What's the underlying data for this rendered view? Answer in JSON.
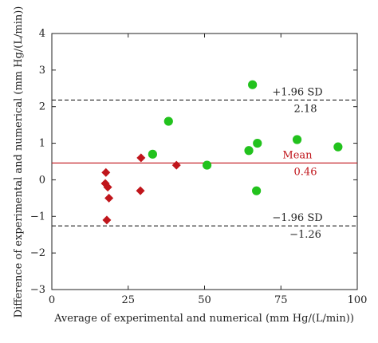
{
  "chart_data": {
    "type": "scatter",
    "title": "",
    "xlabel": "Average of experimental and numerical (mm Hg/(L/min))",
    "ylabel": "Difference of experimental and numerical (mm Hg/(L/min))",
    "xlim": [
      0,
      100
    ],
    "ylim": [
      -3,
      4
    ],
    "x_ticks": [
      "0",
      "25",
      "50",
      "75",
      "100"
    ],
    "y_ticks": [
      "−3",
      "−2",
      "−1",
      "0",
      "1",
      "2",
      "3",
      "4"
    ],
    "grid": false,
    "series": [
      {
        "marker": "diamond",
        "color": "#c0151b",
        "points": [
          {
            "x": 17.7,
            "y": 0.2
          },
          {
            "x": 17.5,
            "y": -0.1
          },
          {
            "x": 18.3,
            "y": -0.2
          },
          {
            "x": 18.7,
            "y": -0.5
          },
          {
            "x": 18.0,
            "y": -1.1
          },
          {
            "x": 29.2,
            "y": 0.6
          },
          {
            "x": 29.0,
            "y": -0.3
          },
          {
            "x": 40.8,
            "y": 0.4
          }
        ]
      },
      {
        "marker": "circle",
        "color": "#22c21d",
        "points": [
          {
            "x": 33.0,
            "y": 0.7
          },
          {
            "x": 38.2,
            "y": 1.6
          },
          {
            "x": 50.8,
            "y": 0.4
          },
          {
            "x": 64.5,
            "y": 0.8
          },
          {
            "x": 65.7,
            "y": 2.6
          },
          {
            "x": 67.3,
            "y": 1.0
          },
          {
            "x": 67.0,
            "y": -0.3
          },
          {
            "x": 80.3,
            "y": 1.1
          },
          {
            "x": 93.7,
            "y": 0.9
          }
        ]
      }
    ],
    "reference_lines": [
      {
        "y": 2.18,
        "style": "dashed",
        "color": "#222222",
        "label": "+1.96 SD",
        "value_label": "2.18"
      },
      {
        "y": 0.46,
        "style": "solid",
        "color": "#c0151b",
        "label": "Mean",
        "value_label": "0.46"
      },
      {
        "y": -1.26,
        "style": "dashed",
        "color": "#222222",
        "label": "−1.96 SD",
        "value_label": "−1.26"
      }
    ]
  }
}
